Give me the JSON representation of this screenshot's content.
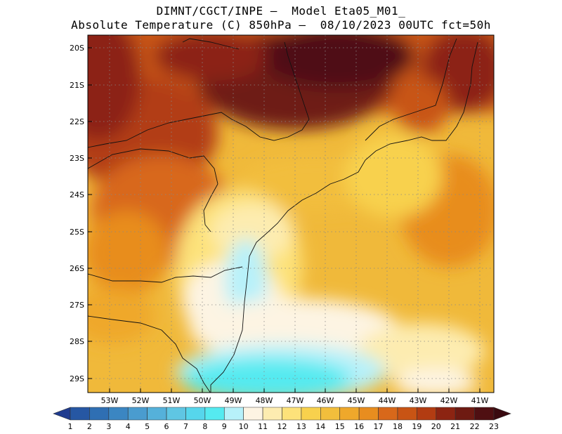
{
  "header": {
    "line1": "DIMNT/CGCT/INPE –  Model Eta05_M01_",
    "line2": "Absolute Temperature (C) 850hPa –  08/10/2023 00UTC fct=50h"
  },
  "map": {
    "lat_labels": [
      "20S",
      "21S",
      "22S",
      "23S",
      "24S",
      "25S",
      "26S",
      "27S",
      "28S",
      "29S"
    ],
    "lon_labels": [
      "53W",
      "52W",
      "51W",
      "50W",
      "49W",
      "48W",
      "47W",
      "46W",
      "45W",
      "44W",
      "43W",
      "42W",
      "41W"
    ],
    "field_min_c": 10.5,
    "field_max_c": 23.0
  },
  "colorbar": {
    "labels": [
      "1",
      "2",
      "3",
      "4",
      "5",
      "6",
      "7",
      "8",
      "9",
      "10",
      "11",
      "12",
      "13",
      "14",
      "15",
      "16",
      "17",
      "18",
      "19",
      "20",
      "21",
      "22",
      "23"
    ],
    "colors": [
      "#1f3b8f",
      "#2657a3",
      "#2f6fb3",
      "#3b86c2",
      "#4a9ccf",
      "#55b1da",
      "#5fc6e3",
      "#56d6ec",
      "#55eaf0",
      "#b7f1fa",
      "#fdf4e3",
      "#fdecb0",
      "#fde27a",
      "#f8d14d",
      "#f2be3c",
      "#efa82b",
      "#e88d1f",
      "#d8681a",
      "#c85414",
      "#b23c12",
      "#8c2412",
      "#6e1a12",
      "#4f0f12",
      "#3a0a10"
    ]
  }
}
